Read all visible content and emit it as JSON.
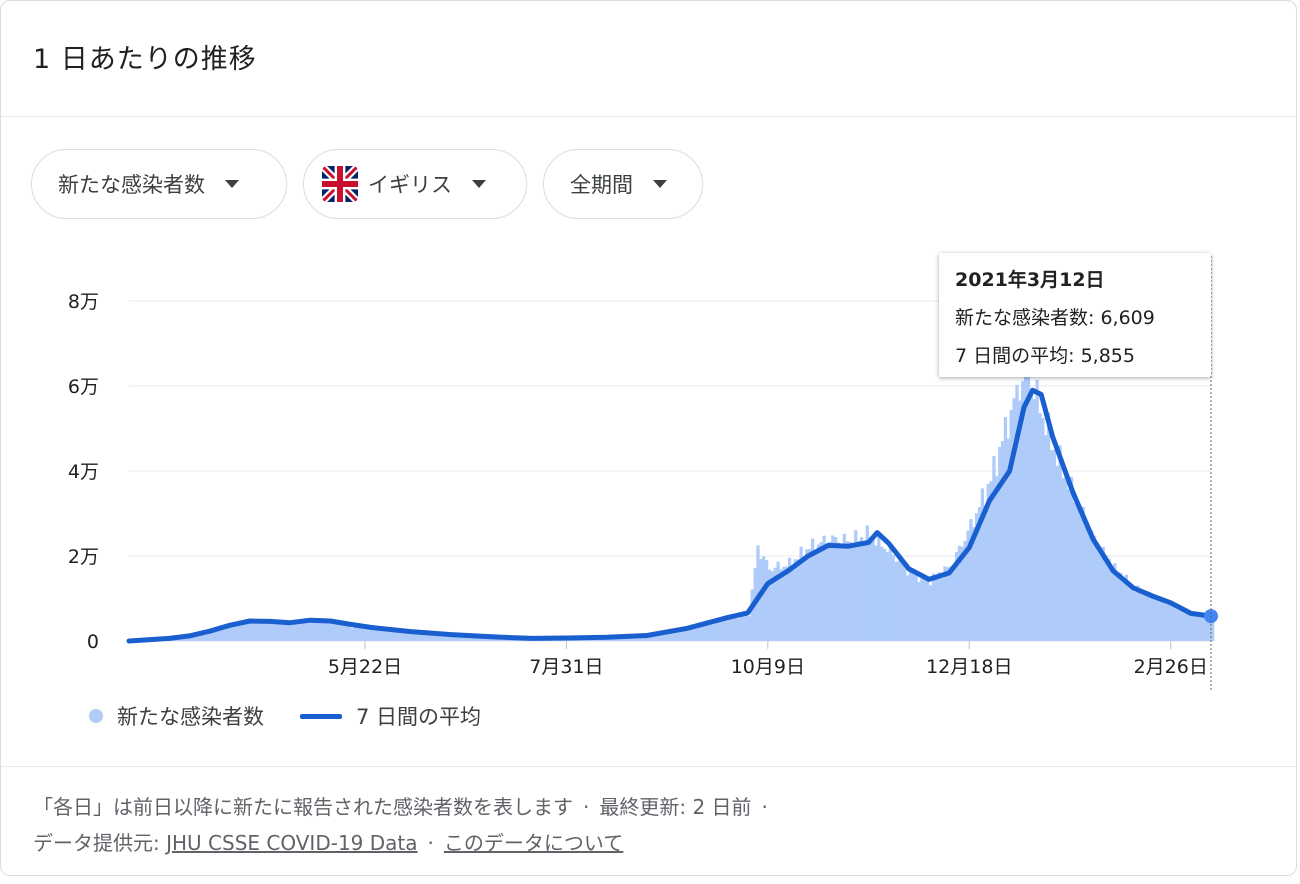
{
  "card": {
    "title": "1 日あたりの推移"
  },
  "filters": {
    "metric": "新たな感染者数",
    "country": "イギリス",
    "period": "全期間"
  },
  "tooltip": {
    "date": "2021年3月12日",
    "cases_label": "新たな感染者数: 6,609",
    "avg_label": "7 日間の平均: 5,855"
  },
  "legend": {
    "bars": "新たな感染者数",
    "line": "7 日間の平均"
  },
  "footer": {
    "note": "「各日」は前日以降に新たに報告された感染者数を表します",
    "updated": "最終更新: 2 日前",
    "source_label": "データ提供元:",
    "source_link": "JHU CSSE COVID-19 Data",
    "about_link": "このデータについて"
  },
  "colors": {
    "bar": "#aecbfa",
    "line": "#1a5fd0",
    "grid": "#e8eaed"
  },
  "chart_data": {
    "type": "bar",
    "ylim": [
      0,
      80000
    ],
    "y_ticks": [
      0,
      20000,
      40000,
      60000,
      80000
    ],
    "y_tick_labels": [
      "0",
      "2万",
      "4万",
      "6万",
      "8万"
    ],
    "x_tick_labels": [
      "5月22日",
      "7月31日",
      "10月9日",
      "12月18日",
      "2月26日"
    ],
    "x_range": [
      "2020-03-01",
      "2021-03-12"
    ],
    "x_ticks": [
      "2020-05-22",
      "2020-07-31",
      "2020-10-09",
      "2020-12-18",
      "2021-02-26"
    ],
    "series": [
      {
        "name": "新たな感染者数",
        "type": "bar",
        "points": [
          [
            "2020-03-01",
            0
          ],
          [
            "2020-03-15",
            1000
          ],
          [
            "2020-03-29",
            2500
          ],
          [
            "2020-04-05",
            4000
          ],
          [
            "2020-04-12",
            4800
          ],
          [
            "2020-04-19",
            4700
          ],
          [
            "2020-04-26",
            4200
          ],
          [
            "2020-05-03",
            4900
          ],
          [
            "2020-05-10",
            4600
          ],
          [
            "2020-05-17",
            3300
          ],
          [
            "2020-05-24",
            2900
          ],
          [
            "2020-06-07",
            1900
          ],
          [
            "2020-06-21",
            1300
          ],
          [
            "2020-07-05",
            900
          ],
          [
            "2020-07-19",
            550
          ],
          [
            "2020-07-31",
            700
          ],
          [
            "2020-08-14",
            900
          ],
          [
            "2020-08-28",
            1200
          ],
          [
            "2020-09-11",
            2800
          ],
          [
            "2020-09-25",
            5500
          ],
          [
            "2020-10-02",
            6500
          ],
          [
            "2020-10-05",
            22000
          ],
          [
            "2020-10-09",
            17000
          ],
          [
            "2020-10-16",
            18000
          ],
          [
            "2020-10-23",
            22000
          ],
          [
            "2020-10-30",
            24000
          ],
          [
            "2020-11-06",
            23500
          ],
          [
            "2020-11-13",
            25000
          ],
          [
            "2020-11-20",
            21000
          ],
          [
            "2020-11-27",
            16000
          ],
          [
            "2020-12-04",
            14500
          ],
          [
            "2020-12-11",
            17500
          ],
          [
            "2020-12-18",
            27000
          ],
          [
            "2020-12-25",
            38000
          ],
          [
            "2021-01-01",
            54000
          ],
          [
            "2021-01-06",
            64000
          ],
          [
            "2021-01-09",
            59000
          ],
          [
            "2021-01-16",
            45000
          ],
          [
            "2021-01-23",
            34000
          ],
          [
            "2021-01-30",
            24000
          ],
          [
            "2021-02-06",
            17000
          ],
          [
            "2021-02-13",
            12500
          ],
          [
            "2021-02-20",
            10500
          ],
          [
            "2021-02-26",
            8800
          ],
          [
            "2021-03-05",
            6500
          ],
          [
            "2021-03-12",
            6609
          ]
        ]
      },
      {
        "name": "7 日間の平均",
        "type": "line",
        "points": [
          [
            "2020-03-01",
            0
          ],
          [
            "2020-03-15",
            600
          ],
          [
            "2020-03-22",
            1200
          ],
          [
            "2020-03-29",
            2300
          ],
          [
            "2020-04-05",
            3700
          ],
          [
            "2020-04-12",
            4700
          ],
          [
            "2020-04-19",
            4600
          ],
          [
            "2020-04-26",
            4300
          ],
          [
            "2020-05-03",
            4900
          ],
          [
            "2020-05-10",
            4700
          ],
          [
            "2020-05-17",
            3900
          ],
          [
            "2020-05-24",
            3200
          ],
          [
            "2020-06-07",
            2200
          ],
          [
            "2020-06-21",
            1500
          ],
          [
            "2020-07-05",
            1000
          ],
          [
            "2020-07-19",
            600
          ],
          [
            "2020-07-31",
            700
          ],
          [
            "2020-08-14",
            900
          ],
          [
            "2020-08-28",
            1300
          ],
          [
            "2020-09-11",
            3000
          ],
          [
            "2020-09-25",
            5500
          ],
          [
            "2020-10-02",
            6600
          ],
          [
            "2020-10-09",
            13500
          ],
          [
            "2020-10-16",
            16500
          ],
          [
            "2020-10-23",
            20000
          ],
          [
            "2020-10-30",
            22500
          ],
          [
            "2020-11-06",
            22300
          ],
          [
            "2020-11-13",
            23200
          ],
          [
            "2020-11-16",
            25500
          ],
          [
            "2020-11-20",
            23000
          ],
          [
            "2020-11-27",
            17000
          ],
          [
            "2020-12-04",
            14500
          ],
          [
            "2020-12-11",
            16000
          ],
          [
            "2020-12-18",
            22000
          ],
          [
            "2020-12-25",
            33000
          ],
          [
            "2021-01-01",
            40000
          ],
          [
            "2021-01-06",
            55000
          ],
          [
            "2021-01-09",
            59000
          ],
          [
            "2021-01-12",
            58000
          ],
          [
            "2021-01-16",
            48000
          ],
          [
            "2021-01-23",
            35000
          ],
          [
            "2021-01-30",
            24000
          ],
          [
            "2021-02-06",
            16500
          ],
          [
            "2021-02-13",
            12500
          ],
          [
            "2021-02-20",
            10500
          ],
          [
            "2021-02-26",
            9000
          ],
          [
            "2021-03-05",
            6500
          ],
          [
            "2021-03-12",
            5855
          ]
        ]
      }
    ]
  }
}
